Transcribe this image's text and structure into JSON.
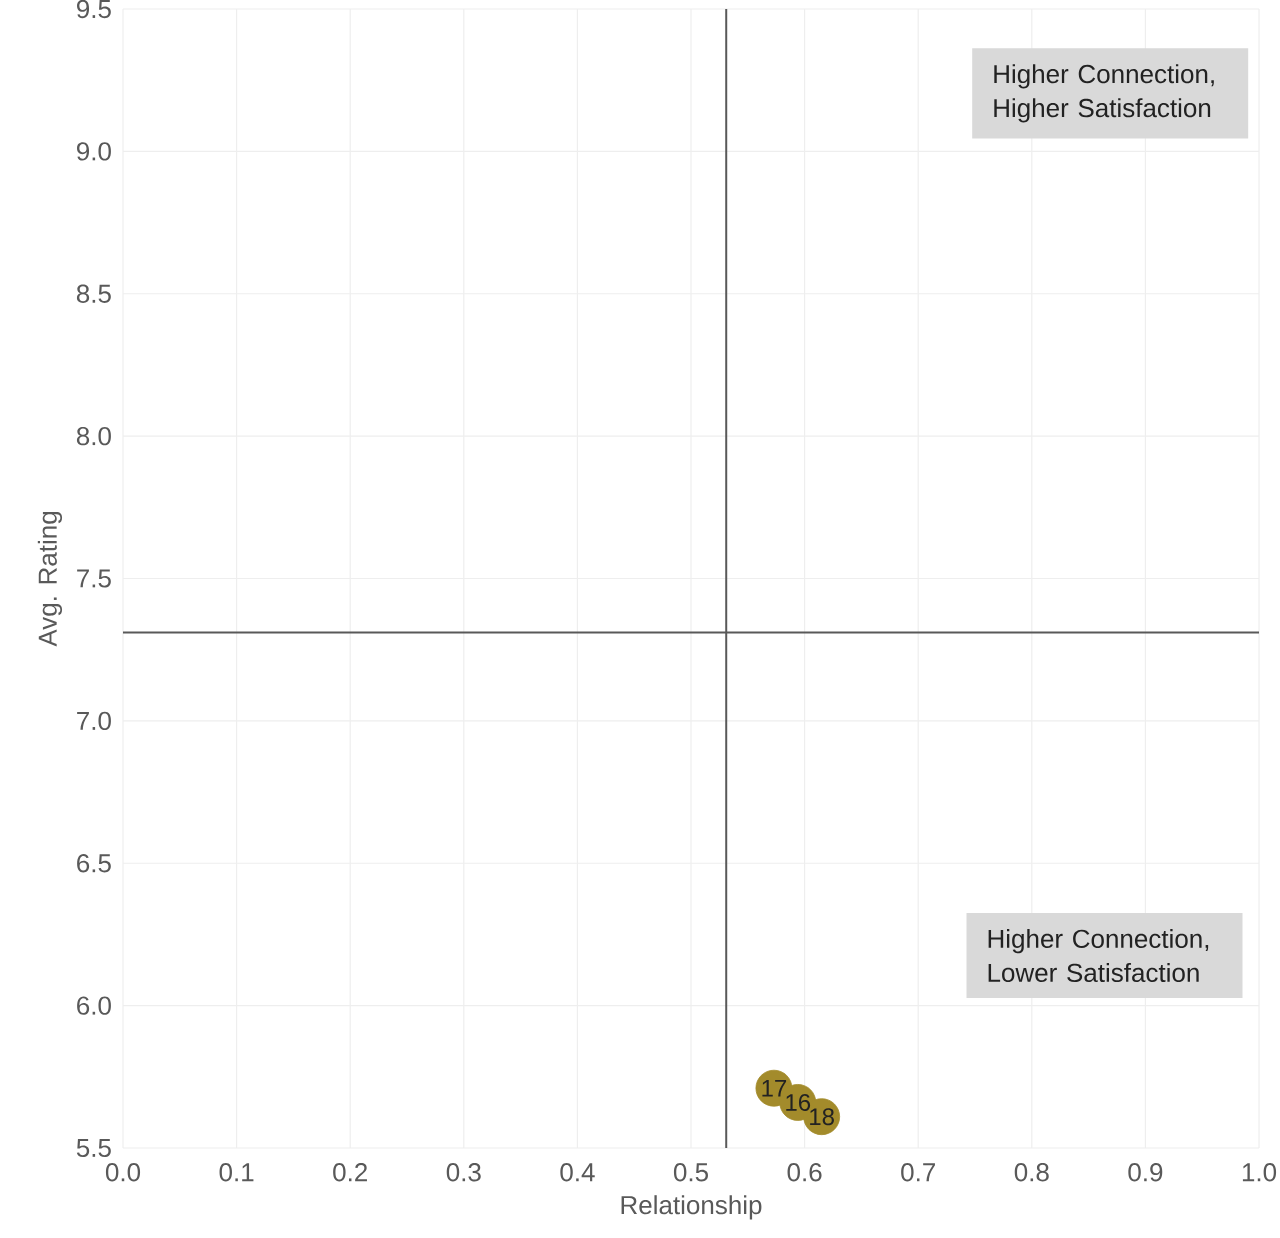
{
  "chart_data": {
    "type": "scatter",
    "xlabel": "Relationship",
    "ylabel": "Avg. Rating",
    "series": [
      {
        "color": "#a38b2b",
        "x": [
          0.573,
          0.594,
          0.615
        ],
        "values": [
          5.71,
          5.66,
          5.61
        ]
      }
    ],
    "marker": "circle",
    "grid": true,
    "xlim": [
      0,
      1
    ],
    "ylim": [
      5.5,
      9.5
    ],
    "xticks": [
      {
        "value": 0,
        "label": "0.0"
      },
      0.1,
      0.2,
      0.3,
      0.4,
      0.5,
      0.6,
      0.7,
      0.8,
      0.9,
      {
        "value": 1,
        "label": "1.0"
      }
    ],
    "yticks": [
      9.5,
      {
        "value": 9,
        "label": "9.0"
      },
      8.5,
      {
        "value": 8,
        "label": "8.0"
      },
      7.5,
      {
        "value": 7,
        "label": "7.0"
      },
      6.5,
      {
        "value": 6,
        "label": "6.0"
      },
      5.5
    ],
    "ref_lines": [
      {
        "axis": "x",
        "value": 0.531,
        "color": "#595959"
      },
      {
        "axis": "y",
        "value": 7.31,
        "color": "#595959"
      }
    ],
    "annotations": [
      "Higher Connection, Higher Satisfaction",
      "Higher Connection, Lower Satisfaction",
      {
        "text": "17",
        "x": 0.573,
        "y": 5.71
      },
      {
        "text": "16",
        "x": 0.594,
        "y": 5.66
      },
      {
        "text": "18",
        "x": 0.615,
        "y": 5.61
      }
    ]
  }
}
